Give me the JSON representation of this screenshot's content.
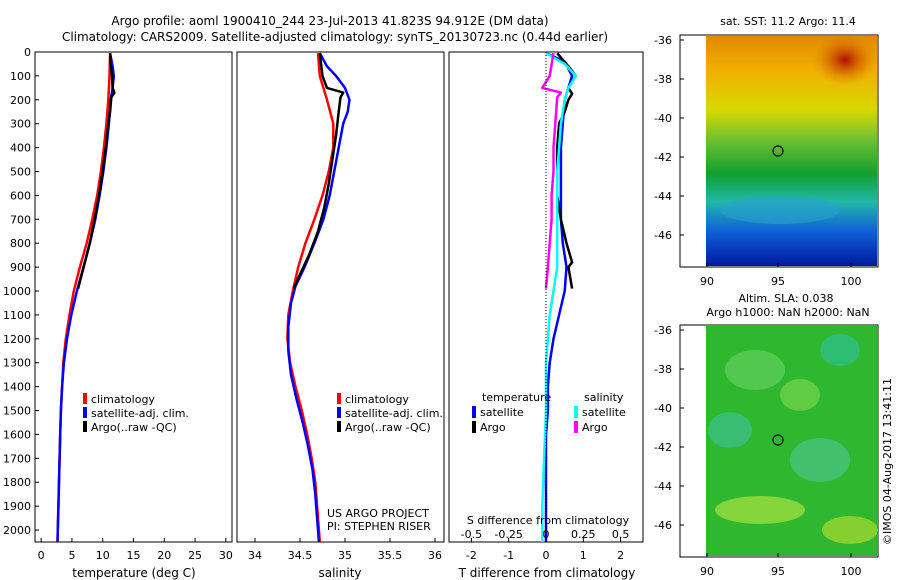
{
  "header": {
    "title_line1": "Argo profile: aoml 1900410_244 23-Jul-2013 41.823S 94.912E (DM data)",
    "title_line2": "Climatology: CARS2009. Satellite-adjusted climatology: synTS_20130723.nc (0.44d earlier)"
  },
  "colors": {
    "climatology": "#ff0000",
    "satellite": "#0000ff",
    "argo": "#000000",
    "cyan": "#00ffff",
    "magenta": "#ff00ff"
  },
  "chart_data": [
    {
      "type": "line",
      "id": "temperature",
      "xlabel": "temperature (deg C)",
      "xlim": [
        -1,
        31
      ],
      "xticks": [
        0,
        5,
        10,
        15,
        20,
        25,
        30
      ],
      "ylim": [
        2050,
        0
      ],
      "yticks": [
        0,
        100,
        200,
        300,
        400,
        500,
        600,
        700,
        800,
        900,
        1000,
        1100,
        1200,
        1300,
        1400,
        1500,
        1600,
        1700,
        1800,
        1900,
        2000
      ],
      "legend": [
        "climatology",
        "satellite-adj. clim.",
        "Argo(..raw -QC)"
      ],
      "series": [
        {
          "name": "climatology",
          "color": "#ff0000",
          "points": [
            [
              11.2,
              5
            ],
            [
              11.1,
              100
            ],
            [
              10.9,
              200
            ],
            [
              10.6,
              300
            ],
            [
              10.2,
              400
            ],
            [
              9.7,
              500
            ],
            [
              9.1,
              600
            ],
            [
              8.3,
              700
            ],
            [
              7.4,
              800
            ],
            [
              6.3,
              900
            ],
            [
              5.3,
              1000
            ],
            [
              4.6,
              1100
            ],
            [
              4.0,
              1200
            ],
            [
              3.6,
              1300
            ],
            [
              3.4,
              1400
            ],
            [
              3.2,
              1500
            ],
            [
              3.1,
              1600
            ],
            [
              3.0,
              1700
            ],
            [
              2.9,
              1800
            ],
            [
              2.8,
              1900
            ],
            [
              2.7,
              2000
            ],
            [
              2.65,
              2050
            ]
          ]
        },
        {
          "name": "satellite-adj. clim.",
          "color": "#0000ff",
          "points": [
            [
              11.2,
              5
            ],
            [
              11.6,
              60
            ],
            [
              11.8,
              100
            ],
            [
              11.6,
              150
            ],
            [
              11.3,
              200
            ],
            [
              11.0,
              300
            ],
            [
              10.6,
              400
            ],
            [
              10.1,
              500
            ],
            [
              9.5,
              600
            ],
            [
              8.8,
              700
            ],
            [
              7.9,
              800
            ],
            [
              6.9,
              900
            ],
            [
              5.8,
              1000
            ],
            [
              4.9,
              1100
            ],
            [
              4.2,
              1200
            ],
            [
              3.7,
              1300
            ],
            [
              3.4,
              1400
            ],
            [
              3.2,
              1500
            ],
            [
              3.1,
              1600
            ],
            [
              3.0,
              1700
            ],
            [
              2.9,
              1800
            ],
            [
              2.8,
              1900
            ],
            [
              2.7,
              2000
            ],
            [
              2.65,
              2050
            ]
          ]
        },
        {
          "name": "Argo(..raw -QC)",
          "color": "#000000",
          "points": [
            [
              11.2,
              5
            ],
            [
              11.3,
              50
            ],
            [
              11.5,
              100
            ],
            [
              11.6,
              150
            ],
            [
              11.9,
              170
            ],
            [
              11.4,
              190
            ],
            [
              11.2,
              250
            ],
            [
              10.9,
              300
            ],
            [
              10.5,
              400
            ],
            [
              10.0,
              500
            ],
            [
              9.4,
              600
            ],
            [
              8.7,
              700
            ],
            [
              7.9,
              800
            ],
            [
              6.9,
              900
            ],
            [
              6.0,
              990
            ]
          ]
        }
      ]
    },
    {
      "type": "line",
      "id": "salinity",
      "xlabel": "salinity",
      "xlim": [
        33.8,
        36.1
      ],
      "xticks": [
        34,
        34.5,
        35,
        35.5,
        36
      ],
      "xticklabels": [
        "34",
        "34.5",
        "35",
        "35.5",
        "36"
      ],
      "ylim": [
        2050,
        0
      ],
      "legend": [
        "climatology",
        "satellite-adj. clim.",
        "Argo(..raw -QC)"
      ],
      "annotation": [
        "US ARGO PROJECT",
        "PI: STEPHEN RISER"
      ],
      "series": [
        {
          "name": "climatology",
          "color": "#ff0000",
          "points": [
            [
              34.7,
              5
            ],
            [
              34.72,
              100
            ],
            [
              34.8,
              200
            ],
            [
              34.87,
              300
            ],
            [
              34.87,
              400
            ],
            [
              34.82,
              500
            ],
            [
              34.75,
              600
            ],
            [
              34.66,
              700
            ],
            [
              34.56,
              800
            ],
            [
              34.48,
              900
            ],
            [
              34.42,
              1000
            ],
            [
              34.37,
              1100
            ],
            [
              34.36,
              1200
            ],
            [
              34.39,
              1300
            ],
            [
              34.45,
              1400
            ],
            [
              34.52,
              1500
            ],
            [
              34.58,
              1600
            ],
            [
              34.63,
              1700
            ],
            [
              34.67,
              1800
            ],
            [
              34.69,
              1900
            ],
            [
              34.71,
              2000
            ],
            [
              34.72,
              2050
            ]
          ]
        },
        {
          "name": "satellite-adj. clim.",
          "color": "#0000ff",
          "points": [
            [
              34.72,
              5
            ],
            [
              34.8,
              60
            ],
            [
              34.9,
              100
            ],
            [
              35.0,
              150
            ],
            [
              35.05,
              200
            ],
            [
              35.03,
              250
            ],
            [
              34.98,
              300
            ],
            [
              34.93,
              400
            ],
            [
              34.88,
              500
            ],
            [
              34.83,
              600
            ],
            [
              34.76,
              700
            ],
            [
              34.66,
              800
            ],
            [
              34.55,
              900
            ],
            [
              34.45,
              980
            ],
            [
              34.4,
              1050
            ],
            [
              34.37,
              1150
            ],
            [
              34.37,
              1250
            ],
            [
              34.4,
              1350
            ],
            [
              34.46,
              1450
            ],
            [
              34.53,
              1550
            ],
            [
              34.59,
              1650
            ],
            [
              34.64,
              1750
            ],
            [
              34.67,
              1850
            ],
            [
              34.69,
              1950
            ],
            [
              34.71,
              2050
            ]
          ]
        },
        {
          "name": "Argo(..raw -QC)",
          "color": "#000000",
          "points": [
            [
              34.72,
              5
            ],
            [
              34.75,
              100
            ],
            [
              34.8,
              150
            ],
            [
              34.98,
              170
            ],
            [
              34.95,
              190
            ],
            [
              34.93,
              250
            ],
            [
              34.9,
              350
            ],
            [
              34.86,
              450
            ],
            [
              34.82,
              550
            ],
            [
              34.77,
              650
            ],
            [
              34.7,
              750
            ],
            [
              34.6,
              850
            ],
            [
              34.5,
              930
            ],
            [
              34.43,
              990
            ]
          ]
        }
      ]
    },
    {
      "type": "line",
      "id": "differences",
      "xlabel": "T difference from climatology",
      "xlim": [
        -2.6,
        2.6
      ],
      "xticks": [
        -2,
        -1,
        0,
        1,
        2
      ],
      "xlabel_top": "S difference from climatology",
      "s_ticks": [
        "-0.5",
        "-0.25",
        "0",
        "0.25",
        "0.5"
      ],
      "ylim": [
        2050,
        0
      ],
      "legend": {
        "temperature_title": "temperature",
        "salinity_title": "salinity",
        "entries": [
          "satellite",
          "Argo",
          "satellite",
          "Argo"
        ]
      },
      "series": [
        {
          "name": "temperature satellite",
          "color": "#0000ff",
          "points": [
            [
              0,
              5
            ],
            [
              0.5,
              40
            ],
            [
              0.7,
              100
            ],
            [
              0.5,
              200
            ],
            [
              0.45,
              300
            ],
            [
              0.4,
              400
            ],
            [
              0.4,
              500
            ],
            [
              0.4,
              600
            ],
            [
              0.4,
              700
            ],
            [
              0.45,
              800
            ],
            [
              0.55,
              900
            ],
            [
              0.5,
              1000
            ],
            [
              0.35,
              1100
            ],
            [
              0.2,
              1200
            ],
            [
              0.1,
              1300
            ],
            [
              0.05,
              1400
            ],
            [
              0.05,
              1500
            ],
            [
              0,
              1600
            ],
            [
              0,
              1800
            ],
            [
              0,
              2050
            ]
          ]
        },
        {
          "name": "temperature Argo",
          "color": "#000000",
          "points": [
            [
              0.3,
              5
            ],
            [
              0.6,
              60
            ],
            [
              0.8,
              100
            ],
            [
              0.6,
              150
            ],
            [
              0.7,
              175
            ],
            [
              0.6,
              200
            ],
            [
              0.5,
              250
            ],
            [
              0.35,
              300
            ],
            [
              0.3,
              400
            ],
            [
              0.3,
              500
            ],
            [
              0.3,
              600
            ],
            [
              0.4,
              700
            ],
            [
              0.55,
              800
            ],
            [
              0.7,
              880
            ],
            [
              0.6,
              900
            ],
            [
              0.7,
              990
            ]
          ]
        },
        {
          "name": "salinity satellite",
          "color": "#00ffff",
          "points": [
            [
              0,
              5
            ],
            [
              0.5,
              50
            ],
            [
              0.8,
              100
            ],
            [
              0.6,
              150
            ],
            [
              0.5,
              200
            ],
            [
              0.4,
              300
            ],
            [
              0.35,
              400
            ],
            [
              0.3,
              500
            ],
            [
              0.3,
              600
            ],
            [
              0.3,
              700
            ],
            [
              0.3,
              800
            ],
            [
              0.3,
              900
            ],
            [
              0.2,
              1000
            ],
            [
              0.1,
              1100
            ],
            [
              0.05,
              1200
            ],
            [
              0,
              1300
            ],
            [
              0,
              1500
            ],
            [
              -0.05,
              1700
            ],
            [
              -0.1,
              1900
            ],
            [
              -0.1,
              2050
            ]
          ]
        },
        {
          "name": "salinity Argo",
          "color": "#ff00ff",
          "points": [
            [
              0.2,
              5
            ],
            [
              0.1,
              100
            ],
            [
              -0.1,
              150
            ],
            [
              0.4,
              170
            ],
            [
              0.3,
              190
            ],
            [
              0.25,
              300
            ],
            [
              0.2,
              400
            ],
            [
              0.2,
              500
            ],
            [
              0.15,
              600
            ],
            [
              0.15,
              700
            ],
            [
              0.1,
              800
            ],
            [
              0.05,
              900
            ],
            [
              0,
              990
            ]
          ]
        }
      ]
    }
  ],
  "maps": {
    "sst": {
      "title": "sat. SST: 11.2  Argo: 11.4",
      "yticks": [
        "-36",
        "-38",
        "-40",
        "-42",
        "-44",
        "-46"
      ],
      "xticks": [
        "90",
        "95",
        "100"
      ]
    },
    "sla": {
      "title_line1": "Altim. SLA: 0.038",
      "title_line2": "Argo h1000: NaN h2000: NaN",
      "yticks": [
        "-36",
        "-38",
        "-40",
        "-42",
        "-44",
        "-46"
      ],
      "xticks": [
        "90",
        "95",
        "100"
      ]
    },
    "credit": "©IMOS 04-Aug-2017 13:41:11"
  }
}
